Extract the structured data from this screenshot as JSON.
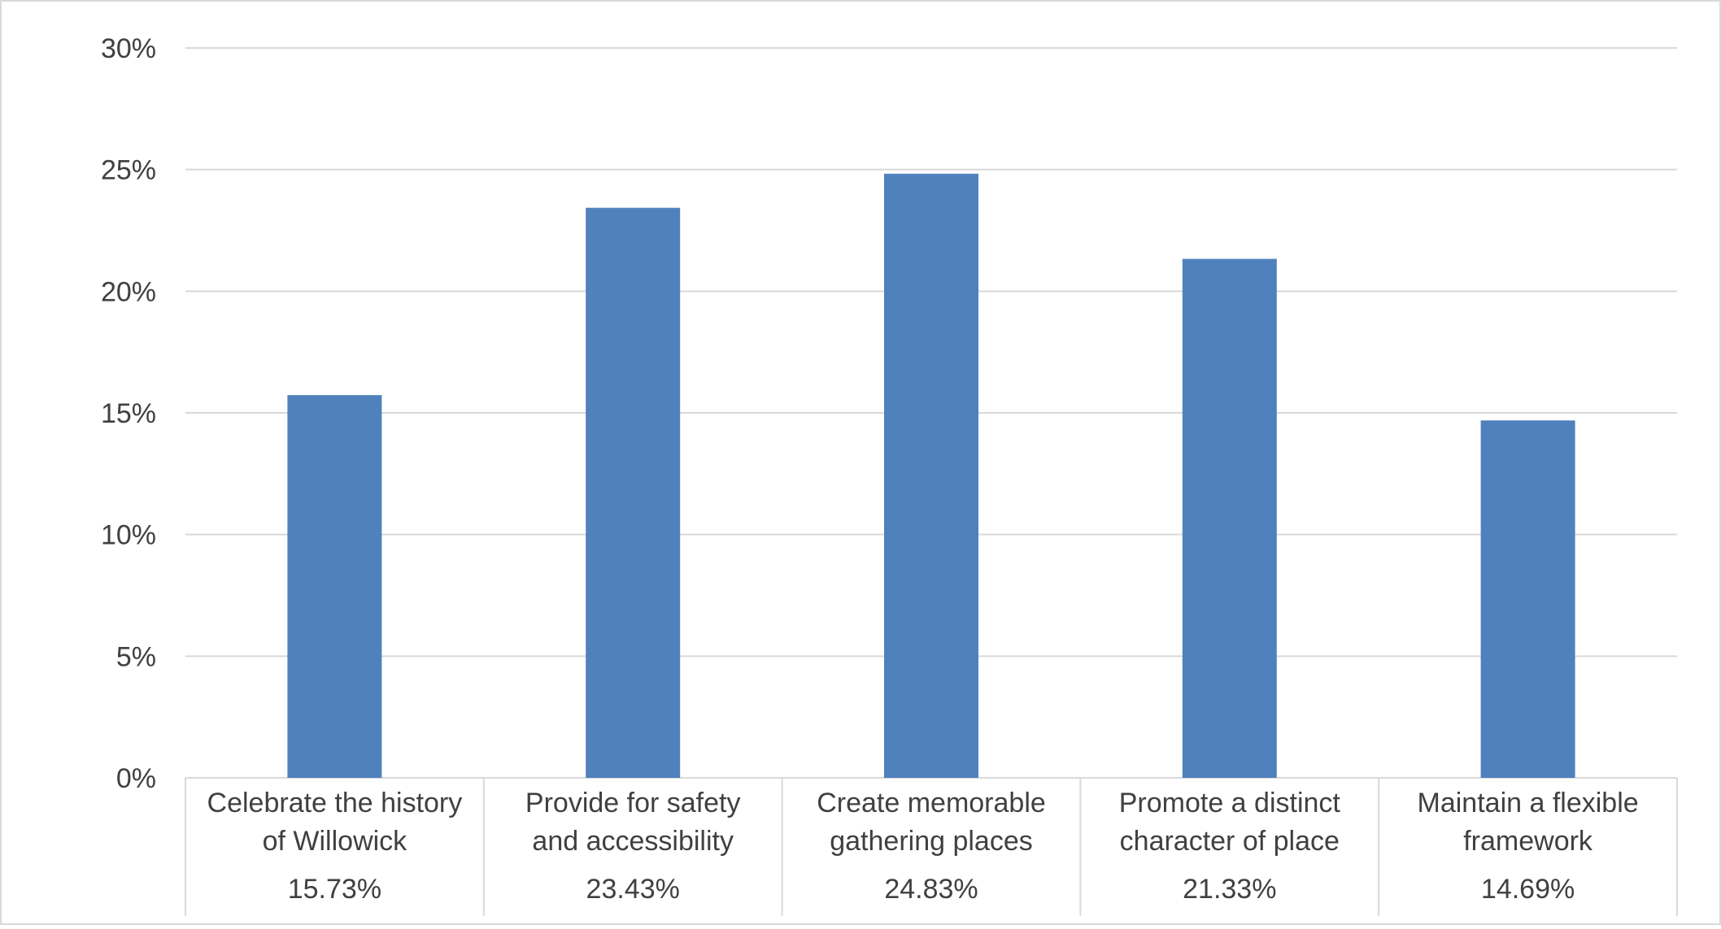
{
  "chart_data": {
    "type": "bar",
    "categories": [
      [
        "Celebrate the history",
        "of Willowick"
      ],
      [
        "Provide for safety",
        "and accessibility"
      ],
      [
        "Create memorable",
        "gathering places"
      ],
      [
        "Promote a distinct",
        "character of place"
      ],
      [
        "Maintain a flexible",
        "framework"
      ]
    ],
    "values": [
      15.73,
      23.43,
      24.83,
      21.33,
      14.69
    ],
    "value_labels": [
      "15.73%",
      "23.43%",
      "24.83%",
      "21.33%",
      "14.69%"
    ],
    "y_ticks": [
      "0%",
      "5%",
      "10%",
      "15%",
      "20%",
      "25%",
      "30%"
    ],
    "ylim": [
      0,
      30
    ],
    "grid": true,
    "title": "",
    "xlabel": "",
    "ylabel": "",
    "colors": {
      "bar": "#4f81bd",
      "grid": "#d9d9d9",
      "text": "#404040",
      "border": "#d9d9d9"
    }
  }
}
